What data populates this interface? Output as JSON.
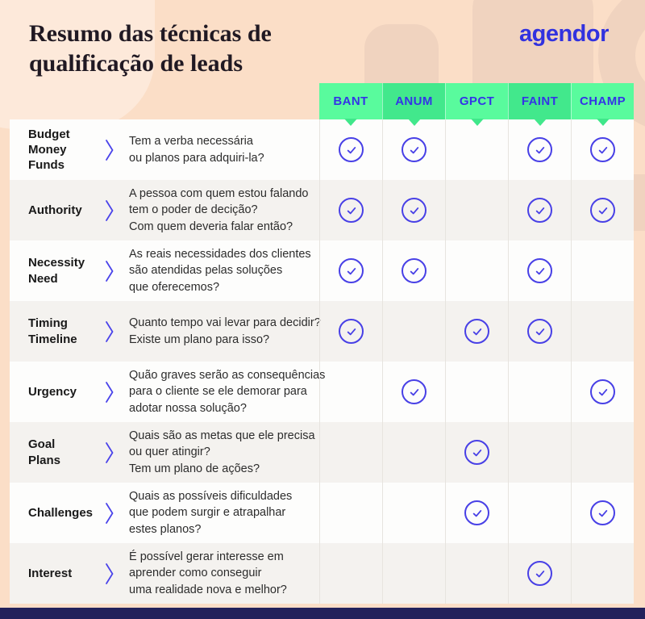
{
  "header": {
    "title_lines": [
      "Resumo das técnicas de",
      "qualificação de leads"
    ],
    "logo_text": "agendor"
  },
  "techniques": [
    "BANT",
    "ANUM",
    "GPCT",
    "FAINT",
    "CHAMP"
  ],
  "rows": [
    {
      "label_lines": [
        "Budget",
        "Money",
        "Funds"
      ],
      "desc_lines": [
        "Tem a verba necessária",
        "ou planos para adquiri-la?"
      ],
      "checks": [
        1,
        1,
        0,
        1,
        1
      ]
    },
    {
      "label_lines": [
        "Authority"
      ],
      "desc_lines": [
        "A pessoa com quem estou falando",
        "tem o poder de decição?",
        "Com quem deveria falar então?"
      ],
      "checks": [
        1,
        1,
        0,
        1,
        1
      ]
    },
    {
      "label_lines": [
        "Necessity",
        "Need"
      ],
      "desc_lines": [
        "As reais necessidades dos clientes",
        "são atendidas pelas soluções",
        "que oferecemos?"
      ],
      "checks": [
        1,
        1,
        0,
        1,
        0
      ]
    },
    {
      "label_lines": [
        "Timing",
        "Timeline"
      ],
      "desc_lines": [
        "Quanto tempo vai levar para decidir?",
        "Existe um plano para isso?"
      ],
      "checks": [
        1,
        0,
        1,
        1,
        0
      ]
    },
    {
      "label_lines": [
        "Urgency"
      ],
      "desc_lines": [
        "Quão graves serão as consequências",
        "para o cliente se ele demorar para",
        "adotar nossa solução?"
      ],
      "checks": [
        0,
        1,
        0,
        0,
        1
      ]
    },
    {
      "label_lines": [
        "Goal",
        "Plans"
      ],
      "desc_lines": [
        "Quais são as metas que ele precisa",
        "ou quer atingir?",
        "Tem um plano de ações?"
      ],
      "checks": [
        0,
        0,
        1,
        0,
        0
      ]
    },
    {
      "label_lines": [
        "Challenges"
      ],
      "desc_lines": [
        "Quais as possíveis dificuldades",
        "que podem surgir e atrapalhar",
        "estes planos?"
      ],
      "checks": [
        0,
        0,
        1,
        0,
        1
      ]
    },
    {
      "label_lines": [
        "Interest"
      ],
      "desc_lines": [
        "É possível gerar interesse em",
        "aprender como conseguir",
        "uma realidade nova e melhor?"
      ],
      "checks": [
        0,
        0,
        0,
        1,
        0
      ]
    }
  ],
  "icons": {
    "check": "check-circle-icon",
    "chevron": "chevron-right-icon",
    "tab_pointer": "tab-pointer-triangle"
  },
  "colors": {
    "background": "#FBDEC7",
    "decorative_shape": "#F0D3BF",
    "title_text": "#201923",
    "logo_blue": "#3232DF",
    "tab_green_light": "#59FB9D",
    "tab_green_dark": "#42E88C",
    "tab_text_blue": "#3434E6",
    "row_white": "#FDFDFC",
    "row_gray": "#F4F2EF",
    "check_blue": "#4840E6",
    "footer_navy": "#22215B"
  },
  "chart_data": {
    "type": "table",
    "title": "Resumo das técnicas de qualificação de leads",
    "columns": [
      "BANT",
      "ANUM",
      "GPCT",
      "FAINT",
      "CHAMP"
    ],
    "row_labels": [
      "Budget Money Funds",
      "Authority",
      "Necessity Need",
      "Timing Timeline",
      "Urgency",
      "Goal Plans",
      "Challenges",
      "Interest"
    ],
    "matrix": [
      [
        1,
        1,
        0,
        1,
        1
      ],
      [
        1,
        1,
        0,
        1,
        1
      ],
      [
        1,
        1,
        0,
        1,
        0
      ],
      [
        1,
        0,
        1,
        1,
        0
      ],
      [
        0,
        1,
        0,
        0,
        1
      ],
      [
        0,
        0,
        1,
        0,
        0
      ],
      [
        0,
        0,
        1,
        0,
        1
      ],
      [
        0,
        0,
        0,
        1,
        0
      ]
    ],
    "legend_position": "none",
    "notes": "1 = technique covers the criterion (blue circled checkmark), 0 = empty cell"
  }
}
